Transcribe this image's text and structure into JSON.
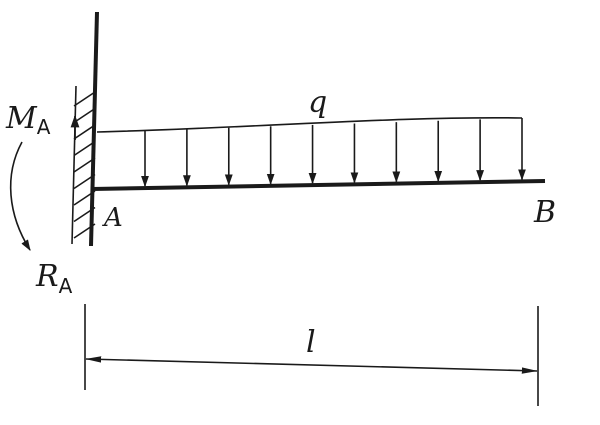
{
  "labels": {
    "distributed_load": "q",
    "moment": "M",
    "moment_subscript": "A",
    "reaction": "R",
    "reaction_subscript": "A",
    "fixed_end": "A",
    "free_end": "B",
    "span_length": "l"
  },
  "load": {
    "arrow_count": 10
  },
  "colors": {
    "ink": "#1a1a1a",
    "background": "#ffffff"
  }
}
